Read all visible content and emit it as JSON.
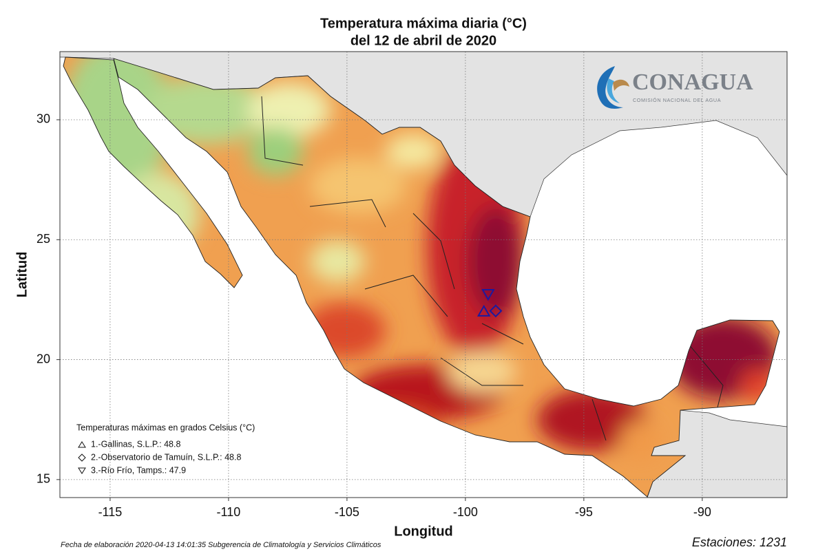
{
  "map": {
    "title": [
      "Temperatura máxima diaria (°C)",
      "del 12 de abril de 2020"
    ],
    "x_label": "Longitud",
    "y_label": "Latitud",
    "xlim": [
      -117.12,
      -86.42
    ],
    "ylim": [
      14.25,
      32.84
    ],
    "xticks": [
      -115,
      -110,
      -105,
      -100,
      -95,
      -90
    ],
    "yticks": [
      15,
      20,
      25,
      30
    ],
    "grid": true,
    "logo": {
      "name": "CONAGUA",
      "subtitle": "COMISIÓN NACIONAL DEL AGUA"
    },
    "legend": {
      "title": "Temperaturas máximas en grados Celsius (°C)",
      "entries": [
        "1.-Gallinas, S.L.P.: 48.8",
        "2.-Observatorio de Tamuín, S.L.P.: 48.8",
        "3.-Río Frío, Tamps.: 47.9"
      ]
    },
    "stations": [
      {
        "lon": -99.22,
        "lat": 22.0
      },
      {
        "lon": -98.72,
        "lat": 22.03
      },
      {
        "lon": -99.04,
        "lat": 22.74
      }
    ],
    "footer": "Fecha de elaboración 2020-04-13 14:01:35 Subgerencia de Climatología y Servicios Climáticos",
    "stations_count": "Estaciones:  1231"
  }
}
